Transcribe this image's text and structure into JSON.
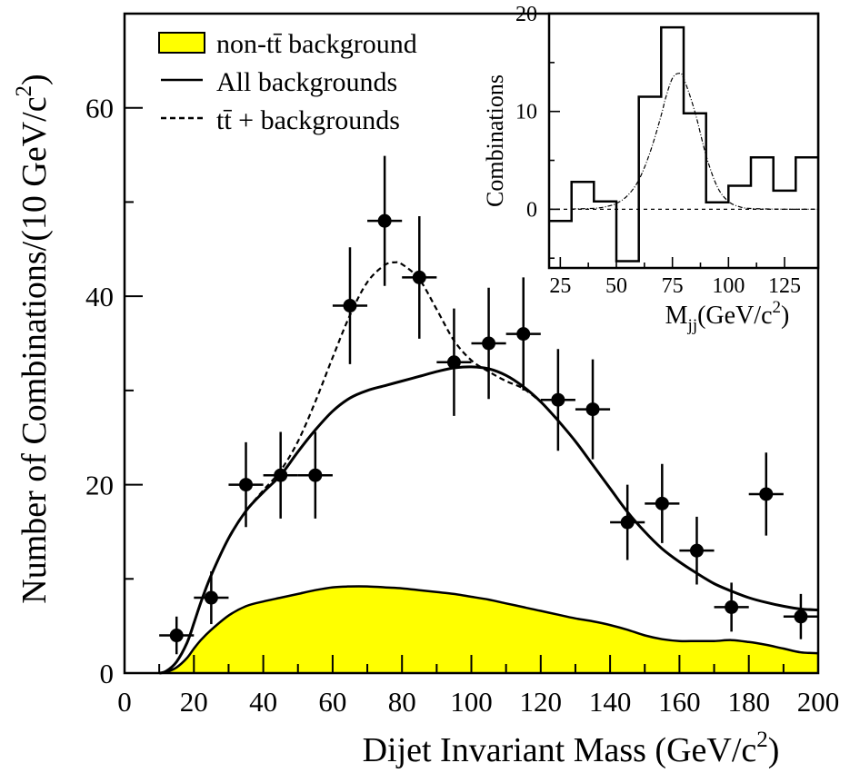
{
  "chart_data": [
    {
      "type": "line",
      "xlabel": "Dijet Invariant Mass (GeV/c",
      "xlabel_sup": "2",
      "xlabel_end": ")",
      "ylabel": "Number of Combinations/(10 GeV/c",
      "ylabel_sup": "2",
      "ylabel_end": ")",
      "xlim": [
        0,
        200
      ],
      "ylim": [
        0,
        70
      ],
      "x_ticks": [
        0,
        20,
        40,
        60,
        80,
        100,
        120,
        140,
        160,
        180,
        200
      ],
      "y_ticks": [
        0,
        20,
        40,
        60
      ],
      "legend_position": "top-left",
      "legend": [
        {
          "label": "non-tt̄ background",
          "style": "yellow-fill"
        },
        {
          "label": "All backgrounds",
          "style": "solid"
        },
        {
          "label": "tt̄ + backgrounds",
          "style": "dashed"
        }
      ],
      "data_points": [
        {
          "x": 15,
          "y": 4,
          "yerr": 2
        },
        {
          "x": 25,
          "y": 8,
          "yerr": 2.8
        },
        {
          "x": 35,
          "y": 20,
          "yerr": 4.5
        },
        {
          "x": 45,
          "y": 21,
          "yerr": 4.6
        },
        {
          "x": 55,
          "y": 21,
          "yerr": 4.6
        },
        {
          "x": 65,
          "y": 39,
          "yerr": 6.2
        },
        {
          "x": 75,
          "y": 48,
          "yerr": 6.9
        },
        {
          "x": 85,
          "y": 42,
          "yerr": 6.5
        },
        {
          "x": 95,
          "y": 33,
          "yerr": 5.7
        },
        {
          "x": 105,
          "y": 35,
          "yerr": 5.9
        },
        {
          "x": 115,
          "y": 36,
          "yerr": 6.0
        },
        {
          "x": 125,
          "y": 29,
          "yerr": 5.4
        },
        {
          "x": 135,
          "y": 28,
          "yerr": 5.3
        },
        {
          "x": 145,
          "y": 16,
          "yerr": 4.0
        },
        {
          "x": 155,
          "y": 18,
          "yerr": 4.2
        },
        {
          "x": 165,
          "y": 13,
          "yerr": 3.6
        },
        {
          "x": 175,
          "y": 7,
          "yerr": 2.6
        },
        {
          "x": 185,
          "y": 19,
          "yerr": 4.4
        },
        {
          "x": 195,
          "y": 6,
          "yerr": 2.4
        }
      ],
      "series": [
        {
          "name": "non-tt̄ background",
          "x": [
            10,
            12,
            15,
            18,
            20,
            22,
            25,
            30,
            35,
            40,
            45,
            50,
            55,
            60,
            65,
            70,
            75,
            80,
            85,
            90,
            95,
            100,
            105,
            110,
            115,
            120,
            125,
            130,
            135,
            140,
            145,
            150,
            155,
            160,
            165,
            170,
            175,
            180,
            185,
            190,
            195,
            200
          ],
          "y": [
            0,
            0.1,
            0.6,
            1.6,
            2.6,
            3.5,
            4.6,
            6.1,
            7.1,
            7.6,
            8.0,
            8.4,
            8.8,
            9.1,
            9.2,
            9.2,
            9.1,
            9.0,
            8.8,
            8.6,
            8.4,
            8.1,
            7.8,
            7.4,
            7.0,
            6.6,
            6.2,
            5.8,
            5.5,
            5.1,
            4.6,
            4.0,
            3.6,
            3.4,
            3.4,
            3.4,
            3.5,
            3.3,
            3.0,
            2.6,
            2.2,
            2.1
          ]
        },
        {
          "name": "All backgrounds",
          "x": [
            10,
            12,
            15,
            18,
            20,
            22,
            25,
            30,
            35,
            40,
            45,
            50,
            55,
            60,
            65,
            70,
            75,
            80,
            85,
            90,
            95,
            100,
            105,
            110,
            115,
            120,
            125,
            130,
            135,
            140,
            145,
            150,
            155,
            160,
            165,
            170,
            175,
            180,
            185,
            190,
            195,
            200
          ],
          "y": [
            0,
            0.2,
            1.2,
            3.2,
            5.3,
            7.5,
            10.4,
            14.3,
            17.2,
            19.2,
            21.0,
            23.5,
            25.8,
            27.8,
            29.2,
            30.0,
            30.5,
            31.0,
            31.5,
            32.0,
            32.4,
            32.5,
            32.3,
            31.6,
            30.4,
            28.8,
            26.8,
            24.6,
            22.1,
            19.6,
            17.1,
            15.0,
            13.2,
            11.8,
            10.6,
            9.5,
            8.7,
            8.0,
            7.5,
            7.1,
            6.8,
            6.7
          ]
        },
        {
          "name": "tt̄ + backgrounds",
          "x": [
            10,
            12,
            15,
            18,
            20,
            22,
            25,
            30,
            35,
            40,
            45,
            50,
            55,
            60,
            65,
            70,
            75,
            78,
            80,
            85,
            90,
            95,
            100,
            105,
            110,
            115,
            120
          ],
          "y": [
            0,
            0.2,
            1.2,
            3.2,
            5.3,
            7.5,
            10.4,
            14.3,
            17.2,
            19.4,
            21.5,
            24.6,
            28.8,
            33.5,
            38.0,
            41.5,
            43.3,
            43.6,
            43.4,
            41.8,
            38.6,
            35.3,
            33.2,
            32.0,
            31.0,
            30.2,
            28.8
          ]
        }
      ]
    },
    {
      "type": "line",
      "xlabel": "M",
      "xlabel_sub": "jj",
      "xlabel_rest": "(GeV/c",
      "xlabel_sup": "2",
      "xlabel_end": ")",
      "ylabel": "Combinations",
      "xlim": [
        20,
        140
      ],
      "ylim": [
        -6,
        20
      ],
      "x_ticks": [
        25,
        50,
        75,
        100,
        125
      ],
      "y_ticks": [
        0,
        10,
        20
      ],
      "histogram": {
        "edges": [
          20,
          30,
          40,
          50,
          60,
          70,
          80,
          90,
          100,
          110,
          120,
          130,
          140
        ],
        "values": [
          -1.2,
          2.8,
          0.8,
          -5.3,
          11.5,
          18.6,
          9.8,
          0.7,
          2.4,
          5.3,
          1.9,
          5.3
        ]
      },
      "series": [
        {
          "name": "",
          "x": [
            30,
            40,
            45,
            50,
            55,
            60,
            65,
            70,
            72,
            75,
            78,
            80,
            85,
            90,
            95,
            100,
            105,
            110,
            120,
            130,
            140
          ],
          "y": [
            0.03,
            0.1,
            0.25,
            0.6,
            1.4,
            3.0,
            5.8,
            9.6,
            11.4,
            13.4,
            13.9,
            13.4,
            10.0,
            5.5,
            2.3,
            0.8,
            0.25,
            0.08,
            0.02,
            0,
            0
          ]
        }
      ],
      "zero_line": 0
    }
  ]
}
